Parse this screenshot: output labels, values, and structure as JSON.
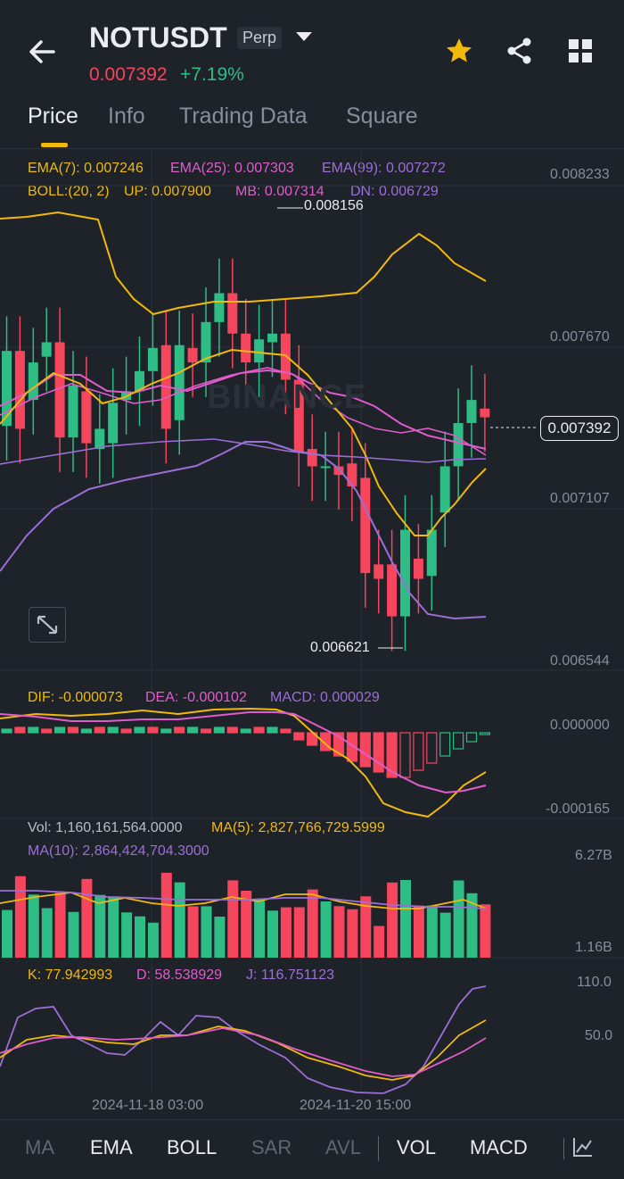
{
  "header": {
    "symbol": "NOTUSDT",
    "contract_type": "Perp",
    "last_price": "0.007392",
    "change_pct": "+7.19%"
  },
  "tabs": [
    {
      "label": "Price",
      "active": true
    },
    {
      "label": "Info",
      "active": false
    },
    {
      "label": "Trading Data",
      "active": false
    },
    {
      "label": "Square",
      "active": false
    }
  ],
  "indicators": {
    "ema7": "EMA(7): 0.007246",
    "ema25": "EMA(25): 0.007303",
    "ema99": "EMA(99): 0.007272",
    "boll": "BOLL:(20, 2)",
    "boll_up": "UP: 0.007900",
    "boll_mb": "MB: 0.007314",
    "boll_dn": "DN: 0.006729"
  },
  "main_chart": {
    "price_axis": [
      "0.008233",
      "0.007670",
      "0.007107",
      "0.006544"
    ],
    "high_label": "0.008156",
    "low_label": "0.006621",
    "current_price_badge": "0.007392",
    "watermark": "BINANCE"
  },
  "macd": {
    "dif": "DIF: -0.000073",
    "dea": "DEA: -0.000102",
    "macd": "MACD: 0.000029",
    "axis_top": "0.000000",
    "axis_bottom": "-0.000165"
  },
  "volume": {
    "vol": "Vol: 1,160,161,564.0000",
    "ma5": "MA(5): 2,827,766,729.5999",
    "ma10": "MA(10): 2,864,424,704.3000",
    "axis_top": "6.27B",
    "axis_bottom": "1.16B"
  },
  "kdj": {
    "k": "K: 77.942993",
    "d": "D: 58.538929",
    "j": "J: 116.751123",
    "axis_top": "110.0",
    "axis_mid": "50.0"
  },
  "time_axis": [
    "2024-11-18 03:00",
    "2024-11-20 15:00"
  ],
  "toolbar": [
    {
      "label": "MA",
      "active": false
    },
    {
      "label": "EMA",
      "active": true
    },
    {
      "label": "BOLL",
      "active": true
    },
    {
      "label": "SAR",
      "active": false
    },
    {
      "label": "AVL",
      "active": false
    },
    {
      "label": "VOL",
      "active": true
    },
    {
      "label": "MACD",
      "active": true
    }
  ],
  "colors": {
    "up": "#2ebd85",
    "down": "#f6465d",
    "boll_up": "#f0b90b",
    "ema25": "#e05ccb",
    "ema99": "#9c6fd6",
    "accent": "#f0b90b"
  },
  "chart_data": {
    "type": "candlestick",
    "price_range": [
      0.006544,
      0.008233
    ],
    "candles_open_close": [
      [
        0.00736,
        0.00762
      ],
      [
        0.00762,
        0.00735
      ],
      [
        0.00745,
        0.00758
      ],
      [
        0.0076,
        0.00765
      ],
      [
        0.00765,
        0.00732
      ],
      [
        0.00732,
        0.0075
      ],
      [
        0.00748,
        0.0073
      ],
      [
        0.00728,
        0.00735
      ],
      [
        0.0073,
        0.00744
      ],
      [
        0.00745,
        0.00748
      ],
      [
        0.00748,
        0.00755
      ],
      [
        0.00755,
        0.00763
      ],
      [
        0.00764,
        0.00735
      ],
      [
        0.00738,
        0.00764
      ],
      [
        0.00763,
        0.00758
      ],
      [
        0.00758,
        0.00772
      ],
      [
        0.00772,
        0.00782
      ],
      [
        0.00782,
        0.00768
      ],
      [
        0.00768,
        0.00758
      ],
      [
        0.00758,
        0.00766
      ],
      [
        0.00765,
        0.00768
      ],
      [
        0.00768,
        0.00752
      ],
      [
        0.00752,
        0.00727
      ],
      [
        0.00728,
        0.00722
      ],
      [
        0.00722,
        0.00722
      ],
      [
        0.00722,
        0.00719
      ],
      [
        0.00723,
        0.00715
      ],
      [
        0.00718,
        0.00685
      ],
      [
        0.00688,
        0.00683
      ],
      [
        0.00688,
        0.0067
      ],
      [
        0.0067,
        0.007
      ],
      [
        0.0069,
        0.00683
      ],
      [
        0.00684,
        0.007
      ],
      [
        0.00706,
        0.00722
      ],
      [
        0.00722,
        0.00737
      ],
      [
        0.00737,
        0.00745
      ],
      [
        0.00742,
        0.00739
      ]
    ]
  }
}
